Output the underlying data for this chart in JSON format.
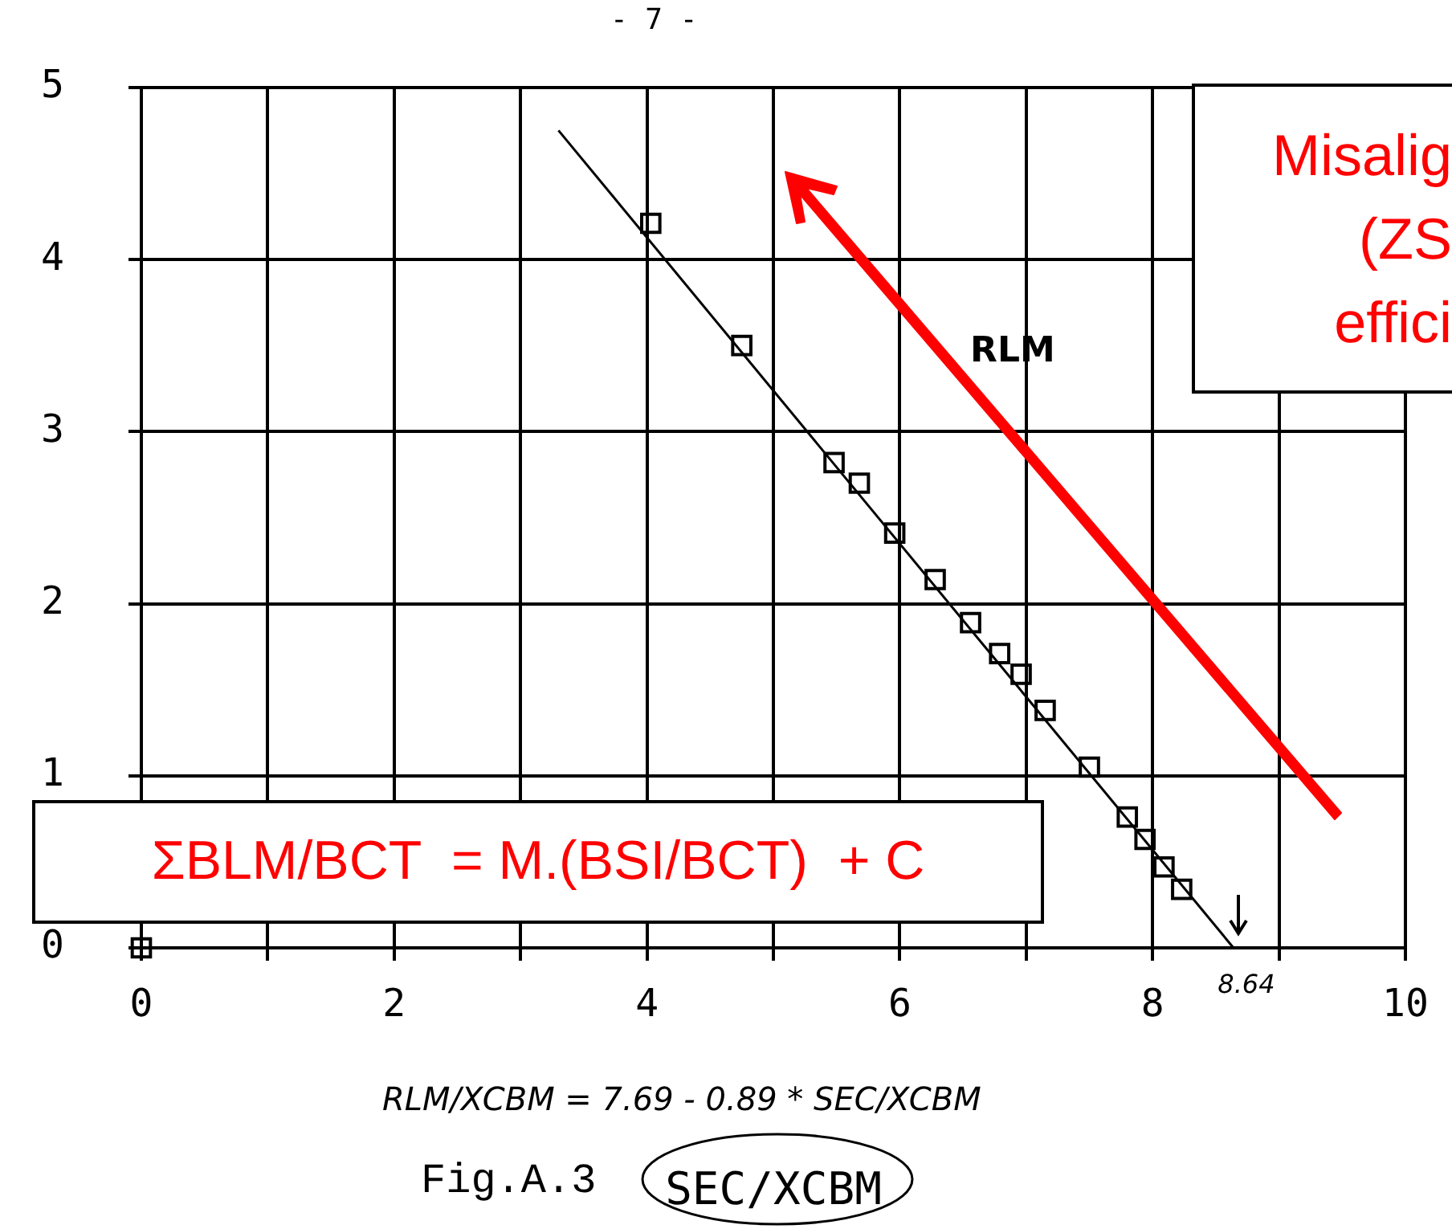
{
  "chart_data": {
    "type": "scatter",
    "xlabel": "SEC/XCBM",
    "xlim": [
      0,
      10
    ],
    "xticks": [
      0,
      {
        "value": 1,
        "label": null
      },
      2,
      {
        "value": 3,
        "label": null
      },
      4,
      {
        "value": 5,
        "label": null
      },
      6,
      {
        "value": 7,
        "label": null
      },
      8,
      {
        "value": 9,
        "label": null
      },
      10
    ],
    "ylim": [
      0,
      5
    ],
    "yticks": [
      0,
      1,
      2,
      3,
      4,
      5
    ],
    "grid": true,
    "marker": "square",
    "series": [
      {
        "color": "#000000",
        "x": [
          0,
          4.03,
          4.75,
          5.48,
          5.68,
          5.96,
          6.28,
          6.56,
          6.79,
          6.96,
          7.15,
          7.5,
          7.8,
          7.94,
          8.09,
          8.23
        ],
        "values": [
          0,
          4.21,
          3.5,
          2.82,
          2.7,
          2.41,
          2.14,
          1.89,
          1.71,
          1.59,
          1.38,
          1.05,
          0.76,
          0.63,
          0.47,
          0.34
        ]
      },
      {
        "type": "line",
        "color": "#000000",
        "marker": "none",
        "x": [
          3.3,
          8.64
        ],
        "values": [
          4.75,
          0
        ]
      }
    ],
    "annotations": [
      "- 7 -",
      "ΣBLM/BCT  = M.(BSI/BCT)  + C",
      "Misalig",
      "(ZS",
      "effici",
      "RLM/XCBM = 7.69 - 0.89 * SEC/XCBM",
      "Fig.A.3",
      "RLM",
      {
        "text": "8.64",
        "x": 8.64,
        "y": 0
      }
    ]
  }
}
